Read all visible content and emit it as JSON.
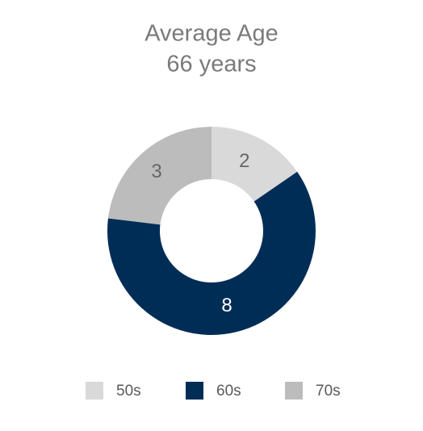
{
  "chart_data": {
    "type": "donut",
    "title": "Average Age",
    "subtitle": "66 years",
    "categories": [
      "50s",
      "60s",
      "70s"
    ],
    "values": [
      2,
      8,
      3
    ],
    "colors": [
      "#d9d9d9",
      "#002d56",
      "#bcbcbc"
    ],
    "legend": "bottom"
  }
}
